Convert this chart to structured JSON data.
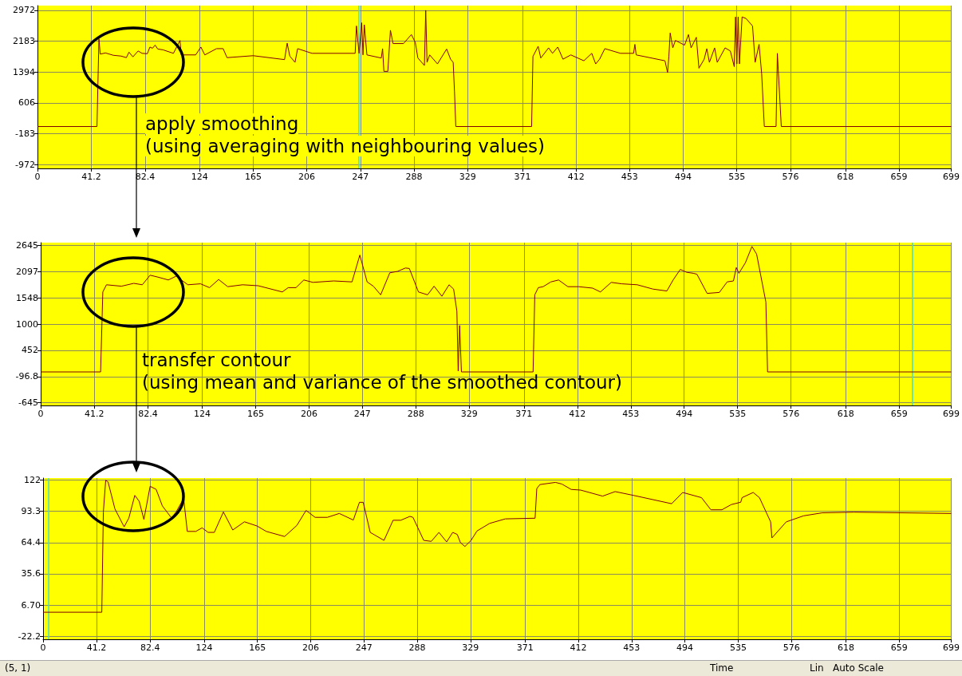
{
  "chart_data": [
    {
      "type": "line",
      "color": "#800000",
      "x": [
        0,
        45.5,
        47,
        48,
        52,
        58,
        64,
        68,
        70,
        73,
        77,
        80,
        84,
        86,
        88,
        90,
        92,
        96,
        104,
        109,
        110,
        121,
        125,
        128,
        137,
        142,
        145,
        165,
        189,
        191,
        193,
        197,
        199,
        210,
        243,
        244,
        246,
        248,
        249,
        250,
        252,
        263,
        264,
        265,
        268,
        270,
        272,
        280,
        286,
        289,
        291,
        296,
        297,
        298,
        300,
        306,
        313,
        316,
        318,
        319,
        320,
        378,
        379,
        383,
        385,
        391,
        394,
        398,
        402,
        408,
        418,
        424,
        427,
        430,
        434,
        446,
        456,
        457,
        458,
        480,
        482,
        483,
        484,
        486,
        488,
        495,
        498,
        500,
        504,
        506,
        510,
        512,
        514,
        518,
        520,
        526,
        530,
        533,
        534,
        535,
        536,
        537,
        539,
        542,
        547,
        549,
        552,
        554,
        556,
        565,
        566,
        569,
        699
      ],
      "values": [
        0,
        0,
        2240,
        1850,
        1880,
        1820,
        1800,
        1760,
        1900,
        1780,
        1930,
        1870,
        1860,
        2030,
        2000,
        2080,
        1980,
        1960,
        1870,
        2200,
        1830,
        1830,
        2030,
        1830,
        1990,
        1990,
        1760,
        1810,
        1710,
        2130,
        1800,
        1640,
        1990,
        1870,
        1870,
        2570,
        1870,
        2650,
        1830,
        2600,
        1830,
        1750,
        1990,
        1410,
        1410,
        2460,
        2120,
        2120,
        2350,
        2150,
        1750,
        1560,
        2970,
        1640,
        1830,
        1600,
        1980,
        1720,
        1640,
        890,
        0,
        0,
        1790,
        2050,
        1750,
        2010,
        1870,
        2030,
        1720,
        1830,
        1680,
        1870,
        1600,
        1720,
        1990,
        1870,
        1870,
        2100,
        1830,
        1680,
        1380,
        1790,
        2390,
        2010,
        2200,
        2080,
        2350,
        2010,
        2280,
        1490,
        1720,
        1990,
        1640,
        2010,
        1640,
        2010,
        1930,
        1530,
        2800,
        1600,
        2800,
        1600,
        2800,
        2760,
        2570,
        1640,
        2100,
        1340,
        0,
        0,
        1870,
        0,
        0
      ],
      "xlim": [
        0,
        699
      ],
      "xticks": [
        0,
        41.2,
        82.4,
        124,
        165,
        206,
        247,
        288,
        329,
        371,
        412,
        453,
        494,
        535,
        576,
        618,
        659,
        699
      ],
      "ylim": [
        -1070,
        3090
      ],
      "yticks": [
        -972,
        -183,
        606,
        1394,
        2183,
        2972
      ],
      "grid": true,
      "ref_lines": [
        {
          "axis": "x",
          "value": 246,
          "color": "#40e0d0"
        }
      ],
      "annotations": [
        "apply smoothing\n(using averaging with neighbouring values)"
      ]
    },
    {
      "type": "line",
      "color": "#800000",
      "x": [
        0,
        46,
        47.7,
        50.5,
        62,
        71.5,
        78,
        84,
        90,
        98,
        104,
        113,
        122.7,
        129.6,
        136.6,
        143.6,
        155,
        167,
        185.5,
        190,
        196,
        202,
        209,
        225,
        239,
        245,
        250.6,
        255.4,
        261,
        268,
        274,
        280,
        283,
        290,
        297,
        302,
        308,
        313.5,
        317,
        319.5,
        320.5,
        321.6,
        323,
        378,
        379.3,
        382,
        385.7,
        391.7,
        397.6,
        404.7,
        413,
        423.7,
        429.7,
        438,
        446,
        458,
        470,
        480.7,
        485.5,
        491,
        496,
        501,
        503.8,
        511.6,
        521,
        527,
        531.8,
        534,
        536,
        541,
        546,
        549.6,
        556.7,
        558,
        699
      ],
      "values": [
        0,
        0,
        1670,
        1820,
        1790,
        1850,
        1820,
        2020,
        1980,
        1920,
        2000,
        1820,
        1840,
        1760,
        1930,
        1780,
        1820,
        1800,
        1670,
        1760,
        1760,
        1920,
        1870,
        1900,
        1880,
        2440,
        1880,
        1790,
        1610,
        2070,
        2100,
        2170,
        2160,
        1670,
        1610,
        1790,
        1580,
        1820,
        1730,
        1270,
        20,
        970,
        0,
        0,
        1610,
        1760,
        1780,
        1880,
        1920,
        1780,
        1780,
        1750,
        1670,
        1870,
        1840,
        1820,
        1730,
        1690,
        1920,
        2140,
        2080,
        2060,
        2040,
        1640,
        1660,
        1880,
        1900,
        2180,
        2060,
        2280,
        2620,
        2460,
        1460,
        0,
        0
      ],
      "xlim": [
        0,
        699
      ],
      "xticks": [
        0,
        41.2,
        82.4,
        124,
        165,
        206,
        247,
        288,
        329,
        371,
        412,
        453,
        494,
        535,
        576,
        618,
        659,
        699
      ],
      "ylim": [
        -700,
        2700
      ],
      "yticks": [
        -645,
        -96.8,
        452,
        1000,
        1548,
        2097,
        2645
      ],
      "grid": true,
      "ref_lines": [
        {
          "axis": "x",
          "value": 669,
          "color": "#40e0d0"
        }
      ],
      "annotations": [
        "transfer contour\n(using mean and variance of the smoothed contour)"
      ]
    },
    {
      "type": "line",
      "color": "#800000",
      "x": [
        0,
        45.2,
        46.4,
        48.2,
        50,
        55.3,
        62.4,
        66,
        70.6,
        74,
        77.6,
        82.4,
        87,
        91.8,
        98.8,
        102.4,
        108.2,
        111,
        117.6,
        122.4,
        127,
        131.8,
        138.8,
        146,
        155,
        164.7,
        171.8,
        185.9,
        195.3,
        202.4,
        209.4,
        218.8,
        228,
        238.8,
        243.5,
        246.4,
        251.8,
        262.4,
        269.4,
        275.3,
        282.4,
        284.7,
        293,
        298.8,
        304.7,
        310.6,
        315.3,
        318.8,
        321.2,
        324.7,
        329.4,
        334,
        343.7,
        355.8,
        378.7,
        380,
        382.4,
        394.4,
        399.3,
        406.5,
        413.8,
        430.7,
        440.3,
        454.8,
        483.8,
        492.3,
        506.8,
        514,
        522.5,
        529.7,
        537,
        538,
        546.6,
        551.4,
        560,
        561,
        572,
        585.3,
        599.8,
        624,
        699
      ],
      "values": [
        0,
        0,
        92.7,
        122,
        120.5,
        95.5,
        78.9,
        87,
        108,
        102.5,
        85.8,
        116.4,
        113.6,
        98.3,
        87.2,
        92.7,
        105.2,
        74.7,
        74.7,
        78,
        73.8,
        73.8,
        92.7,
        76,
        83.6,
        79.7,
        74.7,
        70,
        80.2,
        94.1,
        87.7,
        87.7,
        91.3,
        85.2,
        101.6,
        101.6,
        73.8,
        66.4,
        85,
        85,
        88.6,
        87.7,
        66.4,
        65.5,
        73.8,
        65,
        73.8,
        71.9,
        64.4,
        60.8,
        66.4,
        75.1,
        82.1,
        86.3,
        86.9,
        114.3,
        118,
        120,
        118.5,
        113.5,
        112.9,
        107.3,
        111.5,
        107.9,
        100.3,
        110.7,
        105.9,
        94.7,
        94.7,
        99.5,
        101.7,
        105.9,
        110.7,
        105.9,
        83.5,
        68.7,
        83.5,
        89.1,
        91.9,
        92.5,
        91.3
      ],
      "xlim": [
        0,
        699
      ],
      "xticks": [
        0,
        41.2,
        82.4,
        124,
        165,
        206,
        247,
        288,
        329,
        371,
        412,
        453,
        494,
        535,
        576,
        618,
        659,
        699
      ],
      "ylim": [
        -25,
        124
      ],
      "yticks": [
        -22.2,
        {
          "value": 6.7,
          "label": "6.70"
        },
        35.6,
        64.4,
        93.3,
        122
      ],
      "grid": true,
      "ref_lines": [
        {
          "axis": "x",
          "value": 4,
          "color": "#40e0d0"
        }
      ],
      "annotations": [
        "(5, 1)",
        "Time",
        "Lin",
        "Auto Scale"
      ]
    }
  ]
}
